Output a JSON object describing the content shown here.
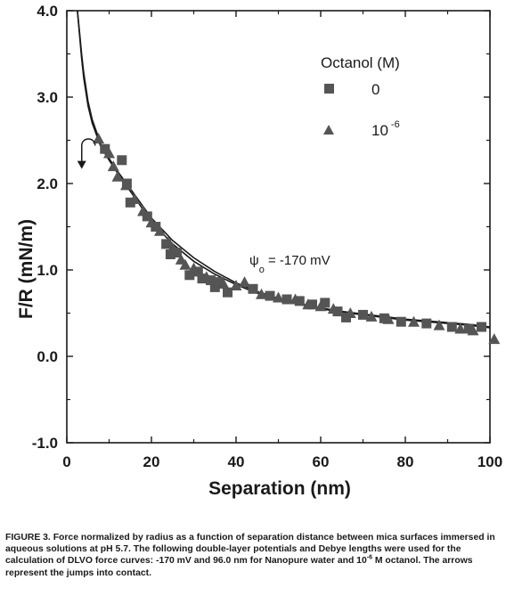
{
  "chart_data": {
    "type": "scatter",
    "title": "",
    "xlabel": "Separation   (nm)",
    "ylabel": "F/R   (mN/m)",
    "xlim": [
      0,
      100
    ],
    "ylim": [
      -1.0,
      4.0
    ],
    "x_ticks": [
      "0",
      "20",
      "40",
      "60",
      "80",
      "100"
    ],
    "y_ticks": [
      "-1.0",
      "0.0",
      "1.0",
      "2.0",
      "3.0",
      "4.0"
    ],
    "grid": false,
    "legend": {
      "title": "Octanol  (M)",
      "placement": "top-right",
      "entries": [
        {
          "marker": "square",
          "label": "0"
        },
        {
          "marker": "triangle",
          "label": "10",
          "label_sup": "-6"
        }
      ]
    },
    "annotation": {
      "psi": "ψ",
      "sub": "o",
      "text": " = -170 mV"
    },
    "series": [
      {
        "label": "0",
        "marker": "square",
        "points": [
          [
            9,
            2.4
          ],
          [
            13,
            2.27
          ],
          [
            14.2,
            2.0
          ],
          [
            15,
            1.78
          ],
          [
            19,
            1.62
          ],
          [
            21,
            1.5
          ],
          [
            23.5,
            1.3
          ],
          [
            24.5,
            1.18
          ],
          [
            26,
            1.2
          ],
          [
            29,
            0.94
          ],
          [
            31,
            0.98
          ],
          [
            32,
            0.9
          ],
          [
            34,
            0.88
          ],
          [
            35,
            0.8
          ],
          [
            36,
            0.86
          ],
          [
            38,
            0.74
          ],
          [
            44,
            0.78
          ],
          [
            48,
            0.7
          ],
          [
            52,
            0.66
          ],
          [
            55,
            0.64
          ],
          [
            58,
            0.6
          ],
          [
            61,
            0.62
          ],
          [
            64,
            0.52
          ],
          [
            66,
            0.45
          ],
          [
            70,
            0.48
          ],
          [
            75,
            0.44
          ],
          [
            79,
            0.4
          ],
          [
            85,
            0.38
          ],
          [
            91,
            0.34
          ],
          [
            95,
            0.32
          ],
          [
            98,
            0.34
          ]
        ]
      },
      {
        "label": "10^-6",
        "marker": "triangle",
        "points": [
          [
            7.5,
            2.52
          ],
          [
            10,
            2.35
          ],
          [
            11,
            2.2
          ],
          [
            12,
            2.08
          ],
          [
            14,
            1.98
          ],
          [
            16,
            1.82
          ],
          [
            18,
            1.68
          ],
          [
            20,
            1.55
          ],
          [
            22,
            1.45
          ],
          [
            24,
            1.32
          ],
          [
            25,
            1.25
          ],
          [
            27,
            1.12
          ],
          [
            28,
            1.06
          ],
          [
            30,
            1.02
          ],
          [
            33,
            0.92
          ],
          [
            37,
            0.84
          ],
          [
            40,
            0.82
          ],
          [
            42,
            0.86
          ],
          [
            46,
            0.72
          ],
          [
            50,
            0.68
          ],
          [
            54,
            0.66
          ],
          [
            57,
            0.6
          ],
          [
            60,
            0.58
          ],
          [
            63,
            0.55
          ],
          [
            67,
            0.5
          ],
          [
            72,
            0.46
          ],
          [
            76,
            0.43
          ],
          [
            82,
            0.4
          ],
          [
            88,
            0.36
          ],
          [
            93,
            0.32
          ],
          [
            96,
            0.3
          ],
          [
            101,
            0.2
          ]
        ]
      }
    ],
    "theory_curves": [
      {
        "label": "Nanopure water",
        "x": [
          2.5,
          3,
          3.5,
          4,
          5,
          6,
          8,
          10,
          12,
          15,
          20,
          25,
          30,
          35,
          40,
          45,
          50,
          55,
          60,
          65,
          70,
          75,
          80,
          85,
          90,
          95,
          100
        ],
        "y": [
          4.0,
          3.72,
          3.45,
          3.22,
          2.9,
          2.7,
          2.43,
          2.27,
          2.12,
          1.91,
          1.56,
          1.3,
          1.1,
          0.95,
          0.83,
          0.73,
          0.66,
          0.6,
          0.55,
          0.51,
          0.48,
          0.45,
          0.42,
          0.4,
          0.38,
          0.36,
          0.33
        ]
      },
      {
        "label": "10^-6 M octanol",
        "x": [
          2.5,
          3,
          3.5,
          4,
          5,
          6,
          8,
          10,
          12,
          15,
          20,
          25,
          30,
          35,
          40,
          45,
          50,
          55,
          60,
          65,
          70,
          75,
          80,
          85,
          90,
          95,
          100
        ],
        "y": [
          4.0,
          3.75,
          3.5,
          3.28,
          2.95,
          2.74,
          2.46,
          2.29,
          2.14,
          1.94,
          1.6,
          1.34,
          1.14,
          0.98,
          0.85,
          0.75,
          0.67,
          0.61,
          0.56,
          0.52,
          0.49,
          0.46,
          0.43,
          0.41,
          0.39,
          0.37,
          0.34
        ]
      }
    ],
    "jump_arrow": {
      "x": 5,
      "y_start": 2.5,
      "y_end": 2.22
    }
  },
  "caption": {
    "part1": "FIGURE 3.  Force normalized by radius as a function of separation distance between mica surfaces immersed in aqueous solutions at pH 5.7.  The following double-layer potentials and Debye lengths were used for the calculation of DLVO force curves: -170 mV and 96.0 nm for Nanopure water and 10",
    "sup": "-6",
    "part2": " M octanol. The arrows represent the jumps into contact."
  }
}
